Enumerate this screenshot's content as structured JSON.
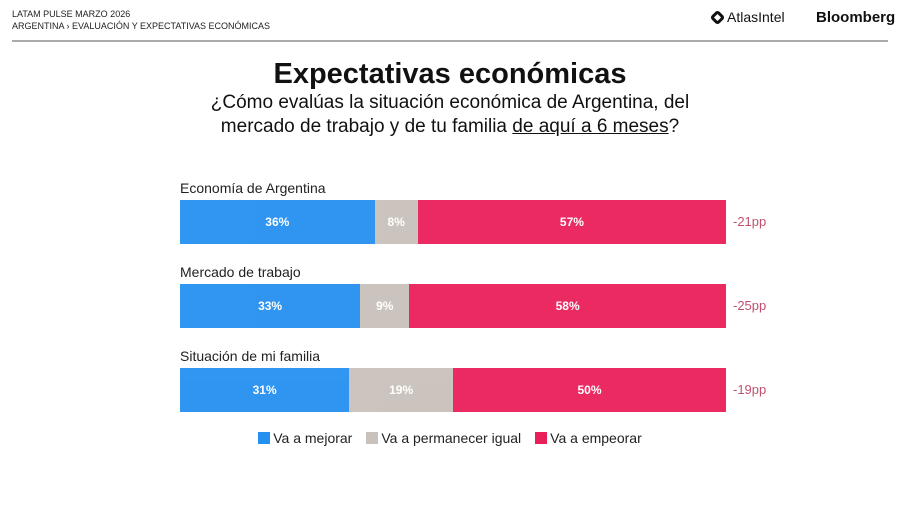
{
  "header": {
    "line1": "LATAM PULSE MARZO 2026",
    "line2": "ARGENTINA › EVALUACIÓN Y EXPECTATIVAS ECONÓMICAS",
    "logo_atlas": "AtlasIntel",
    "logo_bloomberg": "Bloomberg"
  },
  "chart_data": {
    "type": "bar",
    "stacked": true,
    "orientation": "horizontal",
    "title": "Expectativas económicas",
    "subtitle_line1": "¿Cómo evalúas la situación económica de Argentina, del",
    "subtitle_line2_pre": "mercado de trabajo y de tu familia ",
    "subtitle_line2_underlined": "de aquí a 6 meses",
    "subtitle_line2_post": "?",
    "categories": [
      "Economía de Argentina",
      "Mercado de trabajo",
      "Situación de mi familia"
    ],
    "series": [
      {
        "name": "Va a mejorar",
        "color": "#2490f0",
        "values": [
          36,
          33,
          31
        ],
        "labels": [
          "36%",
          "33%",
          "31%"
        ]
      },
      {
        "name": "Va a permanecer igual",
        "color": "#c9c1bb",
        "values": [
          8,
          9,
          19
        ],
        "labels": [
          "8%",
          "9%",
          "19%"
        ]
      },
      {
        "name": "Va a empeorar",
        "color": "#e91f59",
        "values": [
          57,
          58,
          50
        ],
        "labels": [
          "57%",
          "58%",
          "50%"
        ]
      }
    ],
    "net": [
      "-21pp",
      "-25pp",
      "-19pp"
    ],
    "legend": "bottom"
  }
}
